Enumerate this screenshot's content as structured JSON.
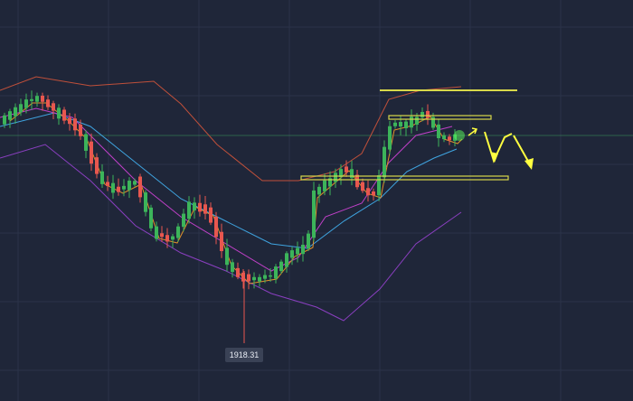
{
  "price_label": "1918.31"
}
